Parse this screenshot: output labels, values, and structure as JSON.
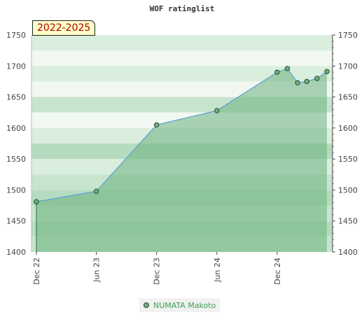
{
  "chart_data": {
    "type": "area",
    "title": "WOF ratinglist",
    "badge": "2022-2025",
    "xlabel": "",
    "ylabel": "",
    "x_tick_labels": [
      "Dec 22",
      "Jun 23",
      "Dec 23",
      "Jun 24",
      "Dec 24"
    ],
    "x_tick_dates": [
      "2022-12-01",
      "2023-06-01",
      "2023-12-01",
      "2024-06-01",
      "2024-12-01"
    ],
    "ylim": [
      1400,
      1750
    ],
    "yticks": [
      1400,
      1450,
      1500,
      1550,
      1600,
      1650,
      1700,
      1750
    ],
    "grid": true,
    "legend_position": "bottom-center",
    "series": [
      {
        "name": "NUMATA Makoto",
        "color": "#6ab17e",
        "line_color": "#5b9fd6",
        "points": [
          {
            "x": "2022-12-01",
            "y": 1481
          },
          {
            "x": "2023-06-01",
            "y": 1498
          },
          {
            "x": "2023-12-01",
            "y": 1605
          },
          {
            "x": "2024-06-01",
            "y": 1628
          },
          {
            "x": "2024-12-01",
            "y": 1690
          },
          {
            "x": "2025-01-01",
            "y": 1696
          },
          {
            "x": "2025-02-01",
            "y": 1673
          },
          {
            "x": "2025-03-01",
            "y": 1675
          },
          {
            "x": "2025-04-01",
            "y": 1680
          },
          {
            "x": "2025-05-01",
            "y": 1691
          }
        ]
      }
    ]
  }
}
